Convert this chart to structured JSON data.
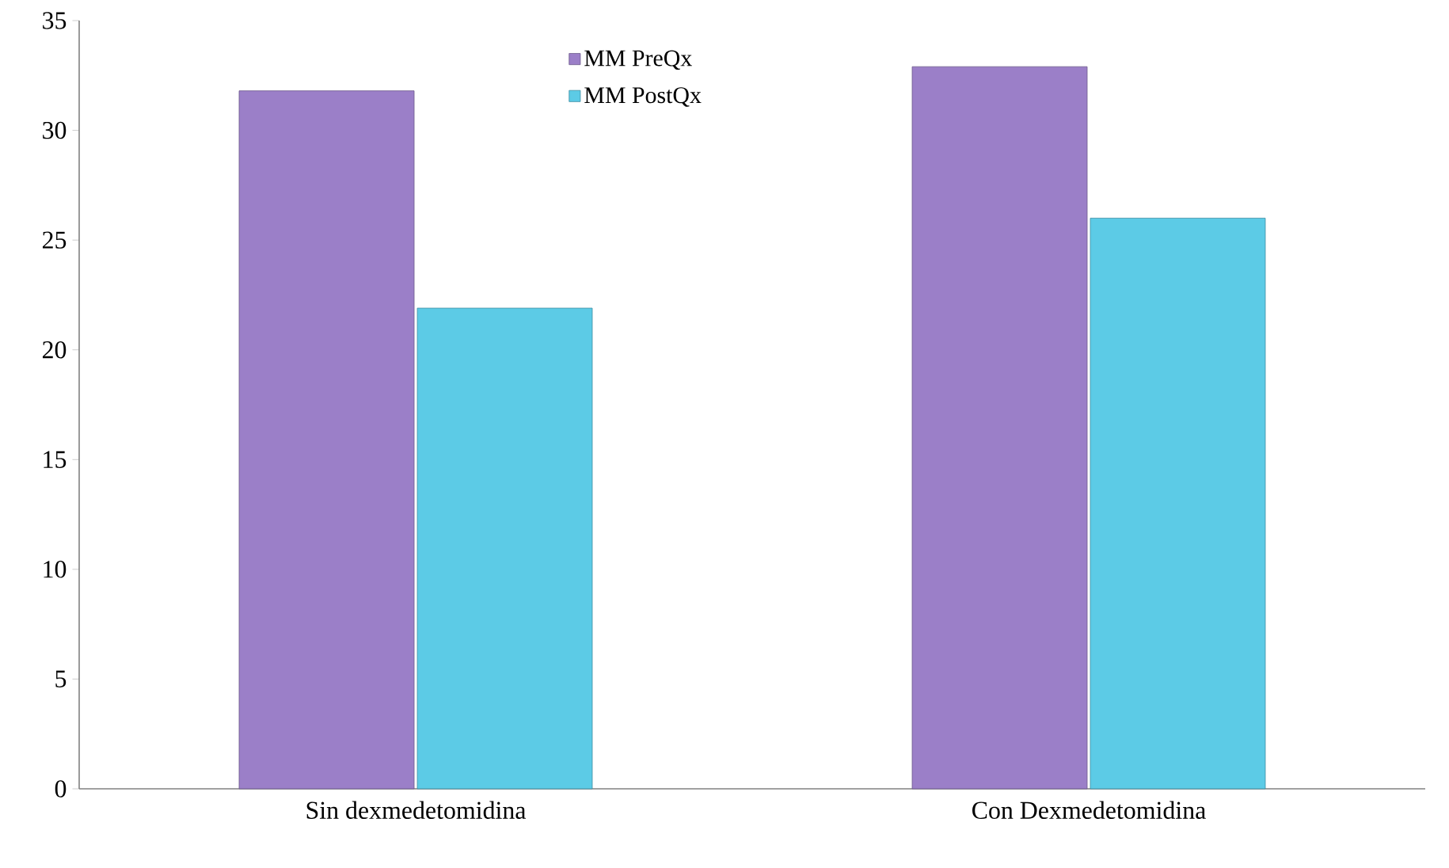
{
  "chart_data": {
    "type": "bar",
    "categories": [
      "Sin dexmedetomidina",
      "Con Dexmedetomidina"
    ],
    "series": [
      {
        "name": "MM PreQx",
        "color": "#9b7fc8",
        "values": [
          31.8,
          32.9
        ]
      },
      {
        "name": "MM PostQx",
        "color": "#5ccbe6",
        "values": [
          21.9,
          26.0
        ]
      }
    ],
    "ylim": [
      0,
      35
    ],
    "yticks": [
      0,
      5,
      10,
      15,
      20,
      25,
      30,
      35
    ],
    "legend": "top"
  }
}
